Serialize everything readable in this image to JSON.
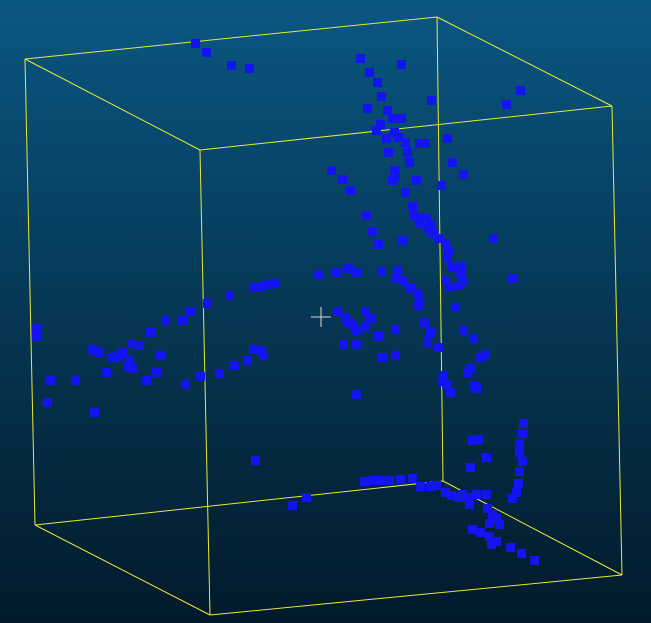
{
  "scene": {
    "type": "3d-point-cloud-viewer",
    "colors": {
      "background_top": "#0a5782",
      "background_bottom": "#021a2a",
      "bounding_box": "#e8e838",
      "points": "#1414f2",
      "cursor": "#d8d8d8"
    },
    "icons": [
      "crosshair-cursor-icon"
    ],
    "bounding_box_visible": true,
    "point_count": 200
  }
}
